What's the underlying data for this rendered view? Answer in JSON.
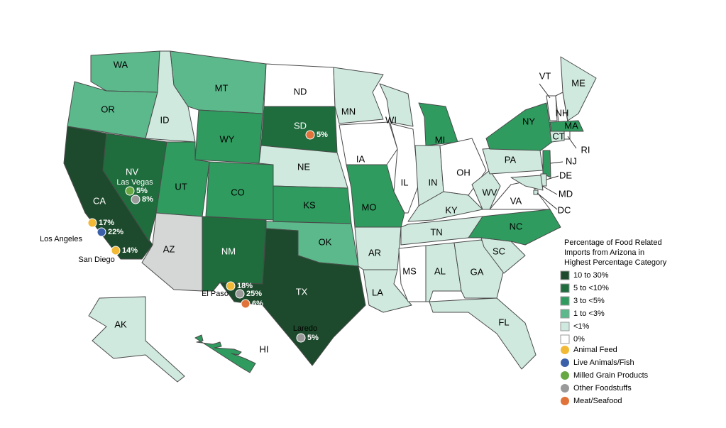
{
  "legend": {
    "title": [
      "Percentage of Food Related",
      "Imports from Arizona in",
      "Highest Percentage Category"
    ],
    "levels": [
      {
        "label": "10 to 30%",
        "color": "#1d4a2c"
      },
      {
        "label": "5 to <10%",
        "color": "#1f6c3d"
      },
      {
        "label": "3 to <5%",
        "color": "#2f9b5f"
      },
      {
        "label": "1 to <3%",
        "color": "#5cb98c"
      },
      {
        "label": "<1%",
        "color": "#cfe9de"
      },
      {
        "label": "0%",
        "color": "#ffffff"
      }
    ],
    "products": [
      {
        "label": "Animal Feed",
        "color": "#f1b935"
      },
      {
        "label": "Live Animals/Fish",
        "color": "#3b5fa8"
      },
      {
        "label": "Milled Grain Products",
        "color": "#67a843"
      },
      {
        "label": "Other Foodstuffs",
        "color": "#9a9a9a"
      },
      {
        "label": "Meat/Seafood",
        "color": "#e0733a"
      }
    ]
  },
  "states": [
    {
      "label": "WA",
      "level": "1 to <3%"
    },
    {
      "label": "OR",
      "level": "1 to <3%"
    },
    {
      "label": "CA",
      "level": "10 to 30%"
    },
    {
      "label": "NV",
      "level": "5 to <10%"
    },
    {
      "label": "ID",
      "level": "<1%"
    },
    {
      "label": "MT",
      "level": "1 to <3%"
    },
    {
      "label": "WY",
      "level": "3 to <5%"
    },
    {
      "label": "UT",
      "level": "3 to <5%"
    },
    {
      "label": "CO",
      "level": "3 to <5%"
    },
    {
      "label": "AZ",
      "level": null
    },
    {
      "label": "NM",
      "level": "5 to <10%"
    },
    {
      "label": "ND",
      "level": "0%"
    },
    {
      "label": "SD",
      "level": "5 to <10%"
    },
    {
      "label": "NE",
      "level": "<1%"
    },
    {
      "label": "KS",
      "level": "3 to <5%"
    },
    {
      "label": "OK",
      "level": "1 to <3%"
    },
    {
      "label": "TX",
      "level": "10 to 30%"
    },
    {
      "label": "MN",
      "level": "<1%"
    },
    {
      "label": "IA",
      "level": "0%"
    },
    {
      "label": "MO",
      "level": "3 to <5%"
    },
    {
      "label": "AR",
      "level": "<1%"
    },
    {
      "label": "LA",
      "level": "<1%"
    },
    {
      "label": "WI",
      "level": "<1%"
    },
    {
      "label": "IL",
      "level": "0%"
    },
    {
      "label": "MI",
      "level": "3 to <5%"
    },
    {
      "label": "IN",
      "level": "<1%"
    },
    {
      "label": "OH",
      "level": "0%"
    },
    {
      "label": "KY",
      "level": "<1%"
    },
    {
      "label": "TN",
      "level": "<1%"
    },
    {
      "label": "MS",
      "level": "0%"
    },
    {
      "label": "AL",
      "level": "<1%"
    },
    {
      "label": "GA",
      "level": "<1%"
    },
    {
      "label": "FL",
      "level": "<1%"
    },
    {
      "label": "SC",
      "level": "<1%"
    },
    {
      "label": "NC",
      "level": "3 to <5%"
    },
    {
      "label": "VA",
      "level": "0%"
    },
    {
      "label": "WV",
      "level": "<1%"
    },
    {
      "label": "PA",
      "level": "<1%"
    },
    {
      "label": "NY",
      "level": "3 to <5%"
    },
    {
      "label": "VT",
      "level": "0%"
    },
    {
      "label": "NH",
      "level": "0%"
    },
    {
      "label": "ME",
      "level": "<1%"
    },
    {
      "label": "MA",
      "level": "3 to <5%"
    },
    {
      "label": "CT",
      "level": "<1%"
    },
    {
      "label": "RI",
      "level": "0%"
    },
    {
      "label": "NJ",
      "level": "3 to <5%"
    },
    {
      "label": "DE",
      "level": "<1%"
    },
    {
      "label": "MD",
      "level": "<1%"
    },
    {
      "label": "DC",
      "level": "<1%"
    },
    {
      "label": "AK",
      "level": "<1%"
    },
    {
      "label": "HI",
      "level": "3 to <5%"
    }
  ],
  "cities": [
    "Las Vegas",
    "Los Angeles",
    "San Diego",
    "El Paso",
    "Laredo"
  ],
  "markers": [
    {
      "product": "Meat/Seafood",
      "label": "5%"
    },
    {
      "product": "Milled Grain Products",
      "label": "5%"
    },
    {
      "product": "Other Foodstuffs",
      "label": "8%"
    },
    {
      "product": "Animal Feed",
      "label": "17%"
    },
    {
      "product": "Live Animals/Fish",
      "label": "22%"
    },
    {
      "product": "Animal Feed",
      "label": "14%"
    },
    {
      "product": "Animal Feed",
      "label": "18%"
    },
    {
      "product": "Other Foodstuffs",
      "label": "25%"
    },
    {
      "product": "Meat/Seafood",
      "label": "6%"
    },
    {
      "product": "Other Foodstuffs",
      "label": "5%"
    }
  ]
}
